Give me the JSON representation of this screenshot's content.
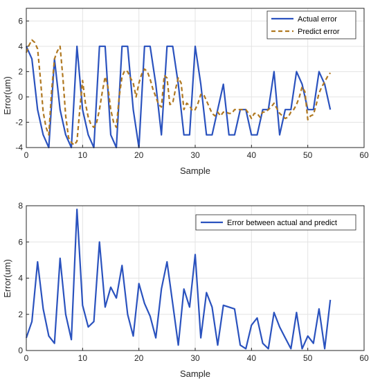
{
  "chart_data": [
    {
      "type": "line",
      "title": "",
      "xlabel": "Sample",
      "ylabel": "Error(um)",
      "xlim": [
        0,
        60
      ],
      "ylim": [
        -4,
        7
      ],
      "xticks": [
        0,
        10,
        20,
        30,
        40,
        50,
        60
      ],
      "yticks": [
        -4,
        -2,
        0,
        2,
        4,
        6
      ],
      "grid": true,
      "legend_position": "top-right",
      "series": [
        {
          "name": "Actual error",
          "color": "#2a52be",
          "style": "solid",
          "x": [
            0,
            1,
            2,
            3,
            4,
            5,
            6,
            7,
            8,
            9,
            10,
            11,
            12,
            13,
            14,
            15,
            16,
            17,
            18,
            19,
            20,
            21,
            22,
            23,
            24,
            25,
            26,
            27,
            28,
            29,
            30,
            31,
            32,
            33,
            34,
            35,
            36,
            37,
            38,
            39,
            40,
            41,
            42,
            43,
            44,
            45,
            46,
            47,
            48,
            49,
            50,
            51,
            52,
            53,
            54
          ],
          "y": [
            4,
            3,
            -1,
            -3,
            -4,
            3,
            -1,
            -3,
            -4,
            4,
            -1,
            -3,
            -4,
            4,
            4,
            -3,
            -4,
            4,
            4,
            -1,
            -4,
            4,
            4,
            1,
            -3,
            4,
            4,
            1,
            -3,
            -3,
            4,
            1,
            -3,
            -3,
            -1,
            1,
            -3,
            -3,
            -1,
            -1,
            -3,
            -3,
            -1,
            -1,
            2,
            -3,
            -1,
            -1,
            2,
            1,
            -1,
            -1,
            2,
            1,
            -1
          ]
        },
        {
          "name": "Predict error",
          "color": "#b07820",
          "style": "dashed",
          "x": [
            0,
            0.5,
            1,
            1.5,
            2,
            2.5,
            3,
            3.5,
            4,
            4.5,
            5,
            5.5,
            6,
            6.5,
            7,
            7.5,
            8,
            8.5,
            9,
            9.5,
            10,
            10.5,
            11,
            11.5,
            12,
            12.5,
            13,
            13.5,
            14,
            14.5,
            15,
            15.5,
            16,
            16.5,
            17,
            17.5,
            18,
            18.5,
            19,
            19.5,
            20,
            20.5,
            21,
            21.5,
            22,
            22.5,
            23,
            23.5,
            24,
            24.5,
            25,
            25.5,
            26,
            26.5,
            27,
            27.5,
            28,
            28.5,
            29,
            29.5,
            30,
            30.5,
            31,
            31.5,
            32,
            32.5,
            33,
            33.5,
            34,
            34.5,
            35,
            35.5,
            36,
            36.5,
            37,
            37.5,
            38,
            38.5,
            39,
            39.5,
            40,
            40.5,
            41,
            41.5,
            42,
            42.5,
            43,
            43.5,
            44,
            44.5,
            45,
            45.5,
            46,
            46.5,
            47,
            47.5,
            48,
            48.5,
            49,
            49.5,
            50,
            50.5,
            51,
            51.5,
            52,
            52.5,
            53,
            53.5,
            54
          ],
          "y": [
            3.5,
            4.1,
            4.5,
            4.3,
            3.8,
            1.5,
            -1.2,
            -2.4,
            -3,
            0.5,
            3,
            3.6,
            4,
            1.5,
            -1.5,
            -3.2,
            -3.6,
            -3.8,
            -3.5,
            -1,
            1.3,
            -0.5,
            -1.6,
            -2.2,
            -2.4,
            -2,
            -1,
            0.4,
            1.6,
            0.8,
            -1,
            -2,
            -2.4,
            0,
            1.6,
            2.1,
            2,
            1.5,
            1.1,
            0,
            1.1,
            1.8,
            2.2,
            2,
            1.4,
            0.6,
            0,
            -0.6,
            -0.8,
            1.7,
            1.5,
            -0.6,
            -0.5,
            0.6,
            1.5,
            1.1,
            -1,
            -0.5,
            -0.7,
            -1.1,
            -1,
            -0.5,
            0.2,
            0.2,
            -0.3,
            -0.8,
            -1.3,
            -1.5,
            -1.2,
            -1.5,
            -1.2,
            -1.2,
            -1.3,
            -1.3,
            -1,
            -1,
            -1,
            -1,
            -1,
            -1.3,
            -1.7,
            -1.3,
            -1.3,
            -1.6,
            -1.2,
            -1.2,
            -1,
            -0.8,
            -0.5,
            -0.9,
            -1.3,
            -1.5,
            -1.7,
            -1.6,
            -1.2,
            -1,
            -0.6,
            0,
            0.8,
            0.4,
            -1.8,
            -1.5,
            -1.4,
            -0.6,
            0.3,
            0.8,
            1.2,
            1.6,
            1.9
          ]
        }
      ]
    },
    {
      "type": "line",
      "title": "",
      "xlabel": "Sample",
      "ylabel": "Error(um)",
      "xlim": [
        0,
        60
      ],
      "ylim": [
        0,
        8
      ],
      "xticks": [
        0,
        10,
        20,
        30,
        40,
        50,
        60
      ],
      "yticks": [
        0,
        2,
        4,
        6,
        8
      ],
      "grid": true,
      "legend_position": "top-right",
      "series": [
        {
          "name": "Error between actual and predict",
          "color": "#2a52be",
          "style": "solid",
          "x": [
            0,
            1,
            2,
            3,
            4,
            5,
            6,
            7,
            8,
            9,
            10,
            11,
            12,
            13,
            14,
            15,
            16,
            17,
            18,
            19,
            20,
            21,
            22,
            23,
            24,
            25,
            26,
            27,
            28,
            29,
            30,
            31,
            32,
            33,
            34,
            35,
            36,
            37,
            38,
            39,
            40,
            41,
            42,
            43,
            44,
            45,
            46,
            47,
            48,
            49,
            50,
            51,
            52,
            53,
            54
          ],
          "y": [
            0.7,
            1.6,
            4.9,
            2.3,
            0.8,
            0.4,
            5.1,
            2.0,
            0.6,
            7.8,
            2.5,
            1.3,
            1.6,
            6.0,
            2.4,
            3.5,
            2.9,
            4.7,
            2.0,
            0.8,
            3.7,
            2.6,
            1.9,
            0.7,
            3.4,
            4.9,
            2.6,
            0.3,
            3.4,
            2.4,
            5.3,
            0.7,
            3.2,
            2.4,
            0.3,
            2.5,
            2.4,
            2.3,
            0.3,
            0.1,
            1.4,
            1.8,
            0.4,
            0.1,
            2.1,
            1.3,
            0.7,
            0.1,
            2.1,
            0.1,
            0.8,
            0.4,
            2.3,
            0.1,
            2.8
          ]
        }
      ]
    }
  ]
}
